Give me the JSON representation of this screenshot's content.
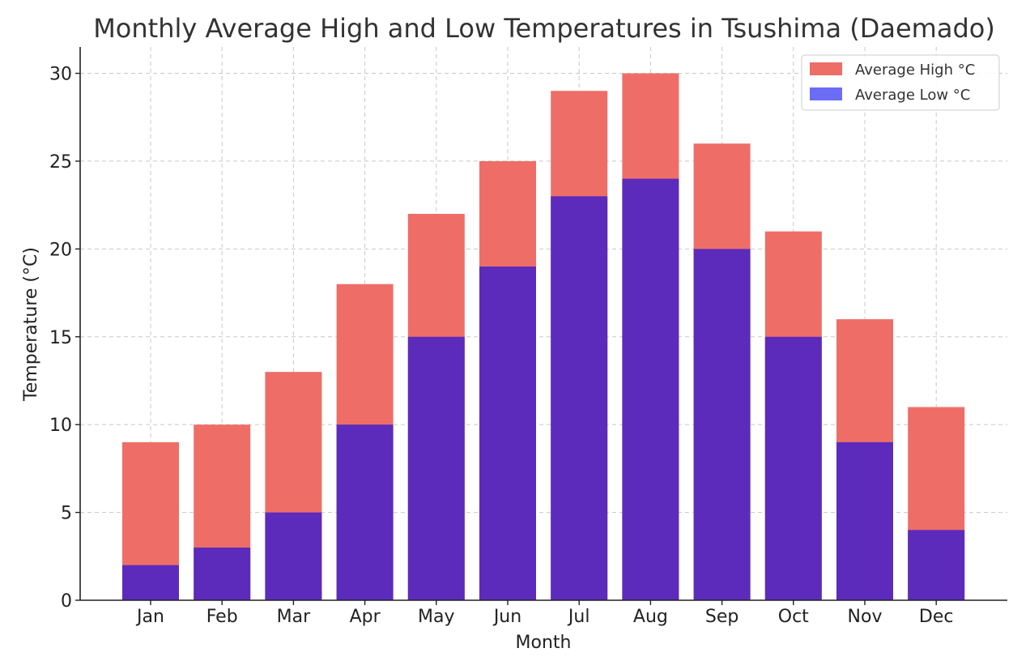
{
  "chart_data": {
    "type": "bar",
    "title": "Monthly Average High and Low Temperatures in Tsushima (Daemado)",
    "xlabel": "Month",
    "ylabel": "Temperature (°C)",
    "categories": [
      "Jan",
      "Feb",
      "Mar",
      "Apr",
      "May",
      "Jun",
      "Jul",
      "Aug",
      "Sep",
      "Oct",
      "Nov",
      "Dec"
    ],
    "series": [
      {
        "name": "Average High °C",
        "color": "#ee6e67",
        "values": [
          9,
          10,
          13,
          18,
          22,
          25,
          29,
          30,
          26,
          21,
          16,
          11
        ]
      },
      {
        "name": "Average Low °C",
        "color": "#5c2bbb",
        "legend_color": "#6c6cf5",
        "values": [
          2,
          3,
          5,
          10,
          15,
          19,
          23,
          24,
          20,
          15,
          9,
          4
        ]
      }
    ],
    "ylim": [
      0,
      31.5
    ],
    "yticks": [
      0,
      5,
      10,
      15,
      20,
      25,
      30
    ],
    "grid": true,
    "legend_position": "top-right"
  }
}
